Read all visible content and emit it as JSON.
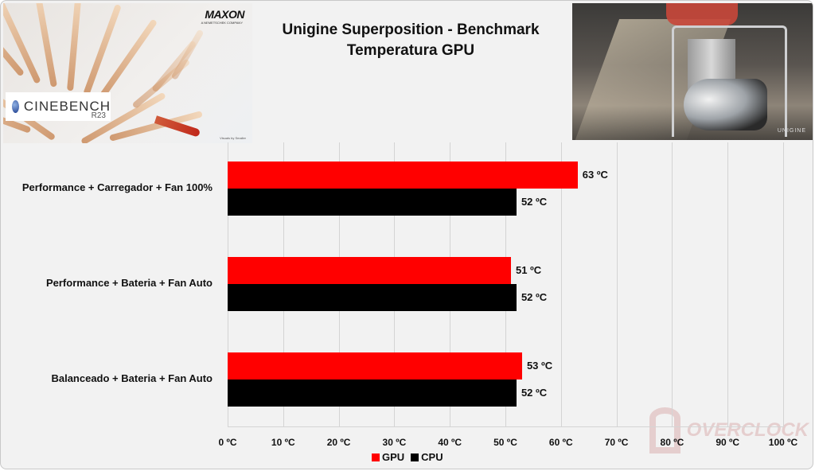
{
  "header": {
    "title_line1": "Unigine Superposition - Benchmark",
    "title_line2": "Temperatura GPU"
  },
  "images": {
    "left": {
      "brand": "MAXON",
      "brand_sub": "A NEMETSCHEK COMPANY",
      "product": "CINEBENCH",
      "version": "R23",
      "credit": "Visuals by Smaller"
    },
    "right": {
      "watermark": "UNIGINE"
    }
  },
  "watermark": {
    "text": "OVERCLOCK"
  },
  "colors": {
    "gpu": "#ff0000",
    "cpu": "#000000",
    "background": "#f2f2f2",
    "grid": "#d4d4d4"
  },
  "chart_data": {
    "type": "bar",
    "orientation": "horizontal",
    "title": "Unigine Superposition - Benchmark / Temperatura GPU",
    "categories": [
      "Performance + Carregador + Fan 100%",
      "Performance + Bateria + Fan Auto",
      "Balanceado + Bateria + Fan Auto"
    ],
    "series": [
      {
        "name": "GPU",
        "color": "#ff0000",
        "values": [
          63,
          51,
          53
        ],
        "labels": [
          "63 ºC",
          "51 ºC",
          "53 ºC"
        ]
      },
      {
        "name": "CPU",
        "color": "#000000",
        "values": [
          52,
          52,
          52
        ],
        "labels": [
          "52 ºC",
          "52 ºC",
          "52 ºC"
        ]
      }
    ],
    "xlabel": "",
    "ylabel": "",
    "xlim": [
      0,
      100
    ],
    "x_ticks": [
      "0 ºC",
      "10 ºC",
      "20 ºC",
      "30 ºC",
      "40 ºC",
      "50 ºC",
      "60 ºC",
      "70 ºC",
      "80 ºC",
      "90 ºC",
      "100 ºC"
    ],
    "grid": true,
    "legend_position": "bottom",
    "legend": [
      "GPU",
      "CPU"
    ]
  }
}
